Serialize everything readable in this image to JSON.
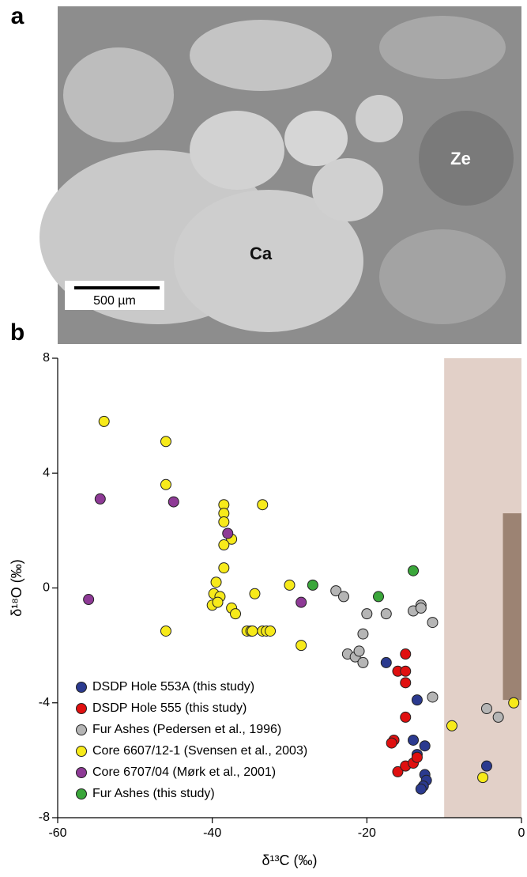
{
  "panel_a": {
    "label": "a",
    "mineral_labels": [
      "Ca",
      "Ze"
    ],
    "scale_bar": "500 µm"
  },
  "chart_data": {
    "type": "scatter",
    "panel_label": "b",
    "x_label": "δ¹³C (‰)",
    "y_label": "δ¹⁸O (‰)",
    "xlim": [
      -60,
      0
    ],
    "ylim": [
      -8,
      8
    ],
    "xticks": [
      -60,
      -40,
      -20,
      0
    ],
    "yticks": [
      -8,
      -4,
      0,
      4,
      8
    ],
    "shaded_regions": [
      {
        "x": [
          -10,
          0
        ],
        "y": [
          -8,
          8
        ],
        "color": "#e2d0c8"
      },
      {
        "x": [
          -2.4,
          0
        ],
        "y": [
          -3.9,
          2.6
        ],
        "color": "#9c8373"
      }
    ],
    "legend_position": "lower left",
    "series": [
      {
        "name": "DSDP Hole 553A (this study)",
        "color": "#2b3a8f",
        "x": [
          -17.5,
          -13.5,
          -14,
          -12.5,
          -13.5,
          -12.5,
          -12.3,
          -12.7,
          -13,
          -4.5
        ],
        "values": [
          -2.6,
          -3.9,
          -5.3,
          -5.5,
          -5.8,
          -6.5,
          -6.7,
          -6.9,
          -7,
          -6.2
        ]
      },
      {
        "name": "DSDP Hole 555 (this study)",
        "color": "#e01010",
        "x": [
          -15,
          -16,
          -15,
          -15,
          -15,
          -16.5,
          -16.8,
          -16,
          -15,
          -14,
          -13.5
        ],
        "values": [
          -2.3,
          -2.9,
          -2.9,
          -3.3,
          -4.5,
          -5.3,
          -5.4,
          -6.4,
          -6.2,
          -6.1,
          -5.9
        ]
      },
      {
        "name": "Fur Ashes (Pedersen et al., 1996)",
        "color": "#b5b5b5",
        "x": [
          -24,
          -23,
          -20,
          -17.5,
          -14,
          -13,
          -13,
          -11.5,
          -20.5,
          -22.5,
          -21.5,
          -21,
          -20.5,
          -11.5,
          -4.5,
          -3
        ],
        "values": [
          -0.1,
          -0.3,
          -0.9,
          -0.9,
          -0.8,
          -0.6,
          -0.7,
          -1.2,
          -1.6,
          -2.3,
          -2.4,
          -2.2,
          -2.6,
          -3.8,
          -4.2,
          -4.5
        ]
      },
      {
        "name": "Core 6607/12-1 (Svensen et al., 2003)",
        "color": "#f7ea1a",
        "x": [
          -54,
          -46,
          -46,
          -38.5,
          -38.5,
          -38.5,
          -37.5,
          -38.5,
          -33.5,
          -38.5,
          -39.5,
          -39.8,
          -39,
          -40,
          -39.3,
          -37.5,
          -37,
          -34.5,
          -30,
          -46,
          -35.5,
          -35,
          -34.8,
          -33.5,
          -33,
          -32.5,
          -28.5,
          -9,
          -5,
          -1
        ],
        "values": [
          5.8,
          5.1,
          3.6,
          2.9,
          2.6,
          2.3,
          1.7,
          1.5,
          2.9,
          0.7,
          0.2,
          -0.2,
          -0.3,
          -0.6,
          -0.5,
          -0.7,
          -0.9,
          -0.2,
          0.1,
          -1.5,
          -1.5,
          -1.5,
          -1.5,
          -1.5,
          -1.5,
          -1.5,
          -2,
          -4.8,
          -6.6,
          -4
        ]
      },
      {
        "name": "Core 6707/04 (Mørk et al., 2001)",
        "color": "#8e3a96",
        "x": [
          -54.5,
          -45,
          -38,
          -56,
          -28.5
        ],
        "values": [
          3.1,
          3.0,
          1.9,
          -0.4,
          -0.5
        ]
      },
      {
        "name": "Fur Ashes (this study)",
        "color": "#3aa63a",
        "x": [
          -27,
          -18.5,
          -14
        ],
        "values": [
          0.1,
          -0.3,
          0.6
        ]
      }
    ]
  }
}
